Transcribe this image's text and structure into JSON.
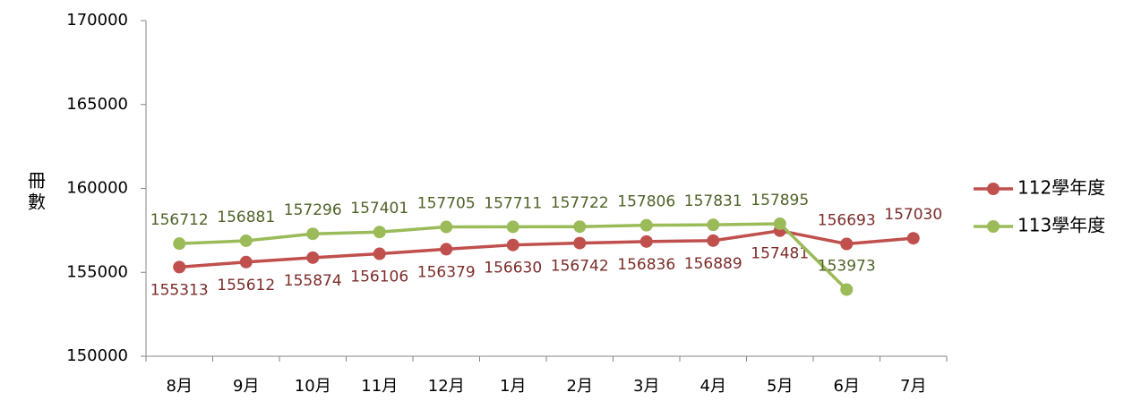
{
  "chart_data": {
    "type": "line",
    "ylabel": "冊數",
    "categories": [
      "8月",
      "9月",
      "10月",
      "11月",
      "12月",
      "1月",
      "2月",
      "3月",
      "4月",
      "5月",
      "6月",
      "7月"
    ],
    "series": [
      {
        "name": "112學年度",
        "color": "#c0504d",
        "label_color": "#7b2c2a",
        "values": [
          155313,
          155612,
          155874,
          156106,
          156379,
          156630,
          156742,
          156836,
          156889,
          157481,
          156693,
          157030
        ]
      },
      {
        "name": "113學年度",
        "color": "#9bbb59",
        "label_color": "#4f6228",
        "values": [
          156712,
          156881,
          157296,
          157401,
          157705,
          157711,
          157722,
          157806,
          157831,
          157895,
          153973,
          null
        ]
      }
    ],
    "ylim": [
      150000,
      170000
    ],
    "yticks": [
      150000,
      155000,
      160000,
      165000,
      170000
    ],
    "grid": false,
    "legend": "right"
  }
}
